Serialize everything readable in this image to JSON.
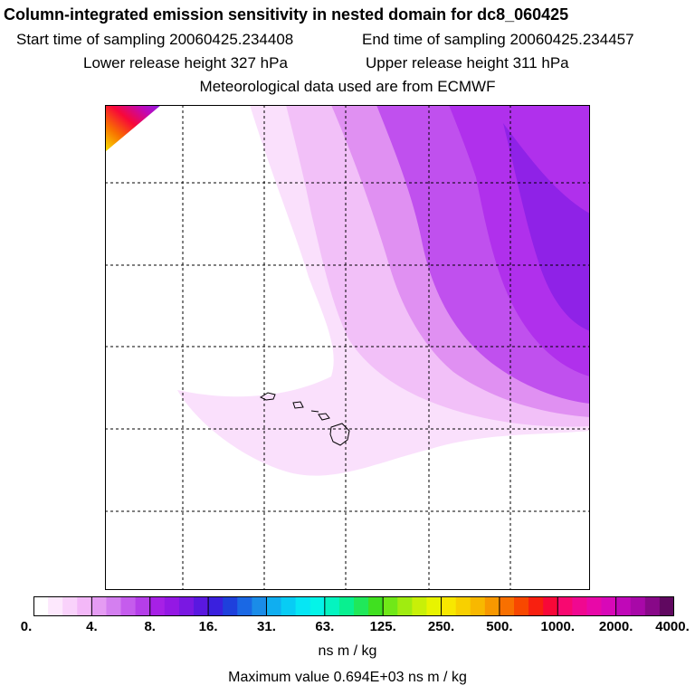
{
  "header": {
    "title": "Column-integrated emission sensitivity in nested domain for dc8_060425",
    "start_label": "Start time of sampling",
    "start_value": "20060425.234408",
    "end_label": "End time of sampling",
    "end_value": "20060425.234457",
    "lower_label": "Lower release height",
    "lower_value": "327 hPa",
    "upper_label": "Upper release height",
    "upper_value": "311 hPa",
    "met_line": "Meteorological data used are from ECMWF"
  },
  "colorbar": {
    "tick_labels": [
      "0.",
      "4.",
      "8.",
      "16.",
      "31.",
      "63.",
      "125.",
      "250.",
      "500.",
      "1000.",
      "2000.",
      "4000."
    ],
    "colors": [
      "#ffffff",
      "#fde8fd",
      "#f9d2fb",
      "#f3b8f8",
      "#e59cf3",
      "#d47ff0",
      "#c55ced",
      "#b53ee9",
      "#a720e6",
      "#9418e4",
      "#7a18e2",
      "#5a18e0",
      "#3a20de",
      "#1e40dc",
      "#1a68e4",
      "#1a8ce8",
      "#10aef0",
      "#08ccf4",
      "#06e6f4",
      "#04f4e8",
      "#04f4c0",
      "#08f090",
      "#20e85a",
      "#40e020",
      "#70e818",
      "#a0ec10",
      "#c8f008",
      "#e8f400",
      "#f8e800",
      "#f8d000",
      "#f8b800",
      "#f89800",
      "#f87000",
      "#f84800",
      "#f82010",
      "#f80838",
      "#f80870",
      "#f00890",
      "#e808a8",
      "#d808b8",
      "#c008b8",
      "#a808a8",
      "#880888",
      "#600860"
    ],
    "units": "ns m / kg"
  },
  "footer": {
    "max_label": "Maximum value",
    "max_value": "0.694E+03 ns m / kg"
  },
  "map": {
    "plume_colors": {
      "faint": "#fae0fc",
      "light": "#f2c0f8",
      "mid": "#e090f2",
      "strong": "#c050ee",
      "core": "#b030ec",
      "peak": "#8a20e6"
    }
  }
}
